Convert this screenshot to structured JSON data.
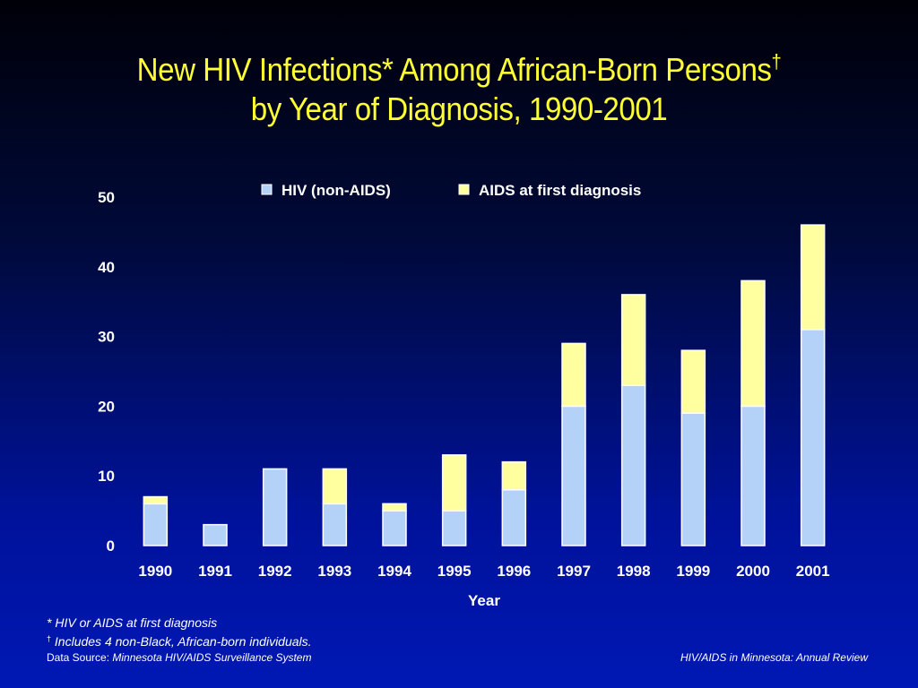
{
  "title": {
    "line1": "New HIV Infections* Among African-Born Persons",
    "line1_mark": "†",
    "line2": "by Year of Diagnosis, 1990-2001"
  },
  "footnotes": {
    "asterisk": "* HIV or AIDS at first diagnosis",
    "dagger_mark": "†",
    "dagger": " Includes 4 non-Black, African-born individuals."
  },
  "source": {
    "label": "Data Source: ",
    "value": "Minnesota HIV/AIDS Surveillance System",
    "right": "HIV/AIDS in Minnesota: Annual Review"
  },
  "colors": {
    "hiv": "#b4d2f8",
    "aids": "#ffffa0",
    "title": "#ffff33",
    "text": "#ffffff"
  },
  "chart_data": {
    "type": "bar",
    "stacked": true,
    "categories": [
      "1990",
      "1991",
      "1992",
      "1993",
      "1994",
      "1995",
      "1996",
      "1997",
      "1998",
      "1999",
      "2000",
      "2001"
    ],
    "series": [
      {
        "name": "HIV (non-AIDS)",
        "values": [
          6,
          3,
          11,
          6,
          5,
          5,
          8,
          20,
          23,
          19,
          20,
          31
        ]
      },
      {
        "name": "AIDS at first diagnosis",
        "values": [
          1,
          0,
          0,
          5,
          1,
          8,
          4,
          9,
          13,
          9,
          18,
          15
        ]
      }
    ],
    "xlabel": "Year",
    "ylabel": "",
    "ylim": [
      0,
      50
    ],
    "yticks": [
      0,
      10,
      20,
      30,
      40,
      50
    ],
    "legend_position": "top",
    "grid": false
  }
}
